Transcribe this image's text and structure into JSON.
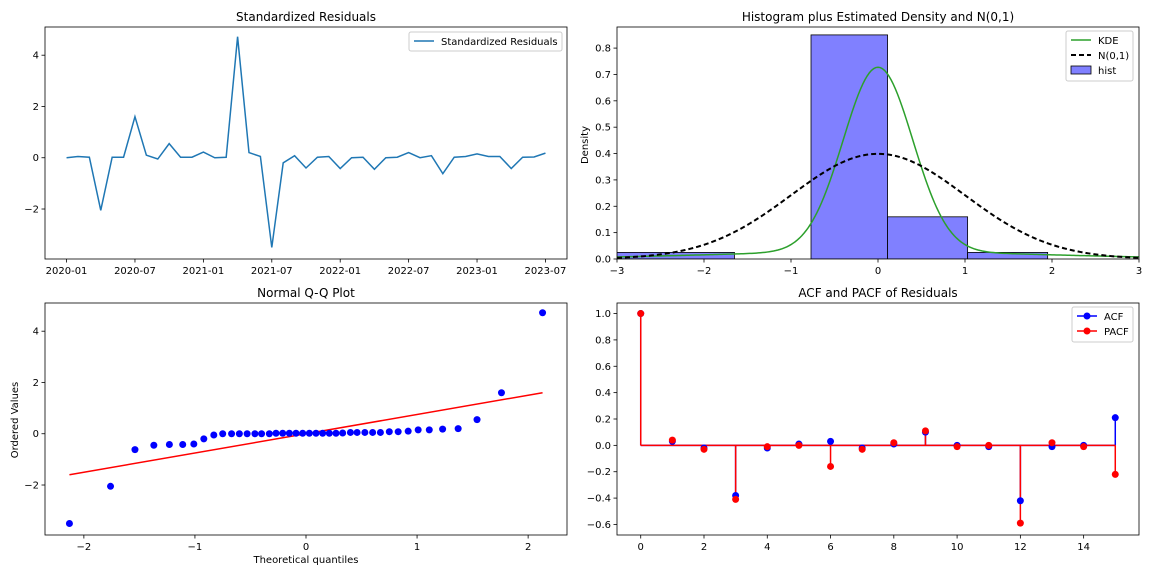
{
  "chart_data": [
    {
      "type": "line",
      "title": "Standardized Residuals",
      "xlabel": "",
      "ylabel": "",
      "x_start": "2020-01",
      "x_end": "2023-07",
      "x_ticks": [
        "2020-01",
        "2020-07",
        "2021-01",
        "2021-07",
        "2022-01",
        "2022-07",
        "2023-01",
        "2023-07"
      ],
      "y_ticks": [
        -2,
        0,
        2,
        4
      ],
      "ylim": [
        -3.95,
        5.1
      ],
      "legend": "upper right",
      "series": [
        {
          "name": "Standardized Residuals",
          "color": "#1f77b4",
          "x": [
            "2020-01",
            "2020-02",
            "2020-03",
            "2020-04",
            "2020-05",
            "2020-06",
            "2020-07",
            "2020-08",
            "2020-09",
            "2020-10",
            "2020-11",
            "2020-12",
            "2021-01",
            "2021-02",
            "2021-03",
            "2021-04",
            "2021-05",
            "2021-06",
            "2021-07",
            "2021-08",
            "2021-09",
            "2021-10",
            "2021-11",
            "2021-12",
            "2022-01",
            "2022-02",
            "2022-03",
            "2022-04",
            "2022-05",
            "2022-06",
            "2022-07",
            "2022-08",
            "2022-09",
            "2022-10",
            "2022-11",
            "2022-12",
            "2023-01",
            "2023-02",
            "2023-03",
            "2023-04",
            "2023-05",
            "2023-06",
            "2023-07"
          ],
          "values": [
            0.0,
            0.05,
            0.02,
            -2.05,
            0.02,
            0.02,
            1.6,
            0.1,
            -0.05,
            0.55,
            0.02,
            0.02,
            0.22,
            0.0,
            0.02,
            4.72,
            0.2,
            0.05,
            -3.5,
            -0.2,
            0.08,
            -0.4,
            0.02,
            0.05,
            -0.42,
            0.0,
            0.02,
            -0.45,
            0.0,
            0.02,
            0.2,
            0.0,
            0.08,
            -0.62,
            0.02,
            0.05,
            0.15,
            0.05,
            0.05,
            -0.42,
            0.02,
            0.03,
            0.18
          ]
        }
      ]
    },
    {
      "type": "histogram",
      "title": "Histogram plus Estimated Density and N(0,1)",
      "xlabel": "",
      "ylabel": "Density",
      "xlim": [
        -3,
        3
      ],
      "ylim": [
        0,
        0.88
      ],
      "x_ticks": [
        -3,
        -2,
        -1,
        0,
        1,
        2,
        3
      ],
      "y_ticks": [
        0.0,
        0.1,
        0.2,
        0.3,
        0.4,
        0.5,
        0.6,
        0.7,
        0.8
      ],
      "legend": "upper right",
      "bins": [
        {
          "x0": -3.5,
          "x1": -1.65,
          "value": 0.025
        },
        {
          "x0": -1.65,
          "x1": -0.77,
          "value": 0.0
        },
        {
          "x0": -0.77,
          "x1": 0.11,
          "value": 0.85
        },
        {
          "x0": 0.11,
          "x1": 1.03,
          "value": 0.16
        },
        {
          "x0": 1.03,
          "x1": 1.95,
          "value": 0.025
        }
      ],
      "series": [
        {
          "name": "KDE",
          "color": "#2ca02c",
          "kind": "kde",
          "peak": 0.7,
          "sigma": 0.4,
          "tail": 0.0275,
          "tail_sigma": 1.9
        },
        {
          "name": "N(0,1)",
          "color": "#000000",
          "kind": "normal",
          "mean": 0,
          "std": 1
        },
        {
          "name": "hist",
          "color": "#8080ff",
          "kind": "bars"
        }
      ]
    },
    {
      "type": "scatter",
      "title": "Normal Q-Q Plot",
      "xlabel": "Theoretical quantiles",
      "ylabel": "Ordered Values",
      "x_ticks": [
        -2,
        -1,
        0,
        1,
        2
      ],
      "y_ticks": [
        -2,
        0,
        2,
        4
      ],
      "xlim": [
        -2.35,
        2.35
      ],
      "ylim": [
        -3.95,
        5.1
      ],
      "points": {
        "color": "#0000ff",
        "x": [
          -2.13,
          -1.76,
          -1.54,
          -1.37,
          -1.23,
          -1.11,
          -1.01,
          -0.92,
          -0.83,
          -0.75,
          -0.67,
          -0.6,
          -0.53,
          -0.46,
          -0.4,
          -0.33,
          -0.27,
          -0.21,
          -0.15,
          -0.09,
          -0.03,
          0.03,
          0.09,
          0.15,
          0.21,
          0.27,
          0.33,
          0.4,
          0.46,
          0.53,
          0.6,
          0.67,
          0.75,
          0.83,
          0.92,
          1.01,
          1.11,
          1.23,
          1.37,
          1.54,
          1.76,
          2.13
        ],
        "y": [
          -3.5,
          -2.05,
          -0.62,
          -0.45,
          -0.42,
          -0.42,
          -0.4,
          -0.2,
          -0.05,
          0.0,
          0.0,
          0.0,
          0.0,
          0.0,
          0.0,
          0.0,
          0.02,
          0.02,
          0.02,
          0.02,
          0.02,
          0.02,
          0.02,
          0.02,
          0.02,
          0.02,
          0.03,
          0.05,
          0.05,
          0.05,
          0.05,
          0.05,
          0.08,
          0.08,
          0.1,
          0.15,
          0.15,
          0.18,
          0.2,
          0.55,
          1.6,
          4.72
        ]
      },
      "reference_line": {
        "color": "#ff0000",
        "x": [
          -2.13,
          2.13
        ],
        "y": [
          -1.6,
          1.6
        ]
      }
    },
    {
      "type": "stem",
      "title": "ACF and PACF of Residuals",
      "xlabel": "",
      "ylabel": "",
      "x_ticks": [
        0,
        2,
        4,
        6,
        8,
        10,
        12,
        14
      ],
      "y_ticks": [
        -0.6,
        -0.4,
        -0.2,
        0.0,
        0.2,
        0.4,
        0.6,
        0.8,
        1.0
      ],
      "xlim": [
        -0.75,
        15.75
      ],
      "ylim": [
        -0.68,
        1.08
      ],
      "legend": "upper right",
      "lags": [
        0,
        1,
        2,
        3,
        4,
        5,
        6,
        7,
        8,
        9,
        10,
        11,
        12,
        13,
        14,
        15
      ],
      "series": [
        {
          "name": "ACF",
          "color": "#0000ff",
          "values": [
            1.0,
            0.03,
            -0.02,
            -0.38,
            -0.02,
            0.01,
            0.03,
            -0.02,
            0.01,
            0.1,
            0.0,
            -0.01,
            -0.42,
            -0.01,
            0.0,
            0.21
          ]
        },
        {
          "name": "PACF",
          "color": "#ff0000",
          "values": [
            1.0,
            0.04,
            -0.03,
            -0.41,
            -0.01,
            0.0,
            -0.16,
            -0.03,
            0.02,
            0.11,
            -0.01,
            0.0,
            -0.59,
            0.02,
            -0.01,
            -0.22
          ]
        }
      ]
    }
  ]
}
